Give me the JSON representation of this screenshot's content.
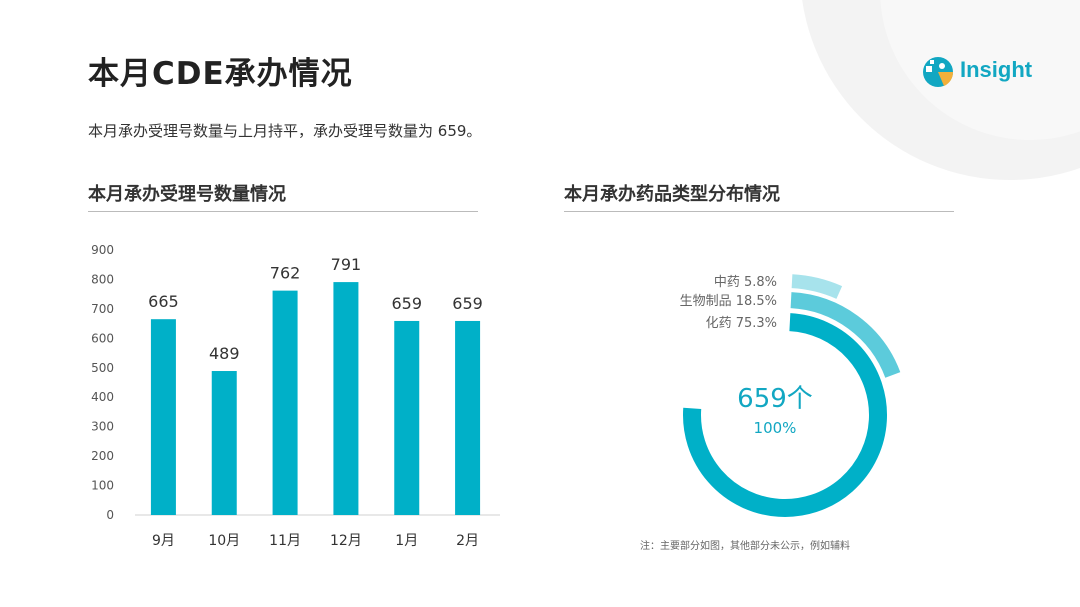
{
  "page": {
    "title": "本月CDE承办情况",
    "summary": "本月承办受理号数量与上月持平，承办受理号数量为  659。",
    "note": "注：主要部分如图，其他部分未公示，例如辅料",
    "logo_text": "Insight"
  },
  "colors": {
    "bar": "#00b0c8",
    "ring1": "#00b0c8",
    "ring2": "#5ccbdb",
    "ring3": "#a7e3ec",
    "center_text": "#12a7c2",
    "accent": "#12a7c2"
  },
  "chart_data": [
    {
      "type": "bar",
      "title": "本月承办受理号数量情况",
      "categories": [
        "9月",
        "10月",
        "11月",
        "12月",
        "1月",
        "2月"
      ],
      "values": [
        665,
        489,
        762,
        791,
        659,
        659
      ],
      "value_labels": [
        "665",
        "489",
        "762",
        "791",
        "659",
        "659"
      ],
      "ylim": [
        0,
        900
      ],
      "yticks": [
        "0",
        "100",
        "200",
        "300",
        "400",
        "500",
        "600",
        "700",
        "800",
        "900"
      ],
      "grid": false,
      "xlabel": "",
      "ylabel": ""
    },
    {
      "type": "pie",
      "title": "本月承办药品类型分布情况",
      "labels": [
        "化药 75.3%",
        "生物制品  18.5%",
        "中药 5.8%"
      ],
      "values": [
        75.3,
        18.5,
        5.8
      ],
      "center_value": "659个",
      "center_percent": "100%"
    }
  ]
}
